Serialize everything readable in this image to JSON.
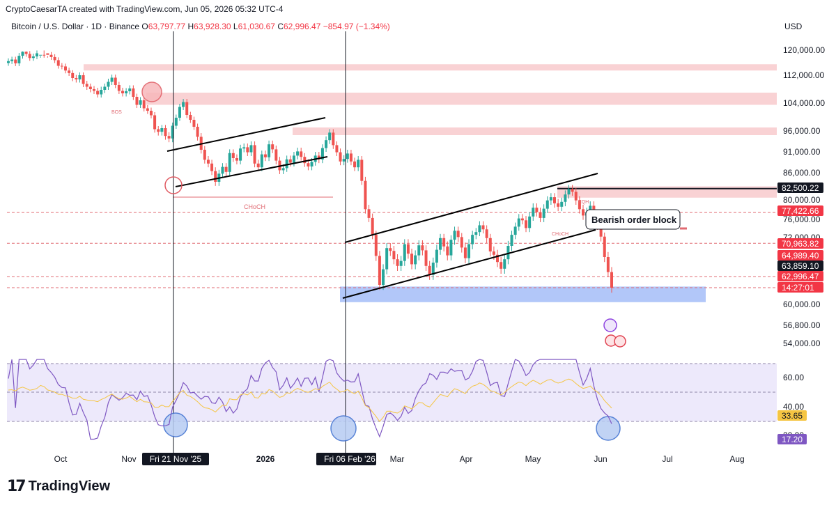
{
  "header": {
    "credit": "CryptoCaesarTA created with TradingView.com, Jun 05, 2026 05:32 UTC-4",
    "symbol": "Bitcoin / U.S. Dollar · 1D · Binance",
    "open_label": "O",
    "open": "63,797.77",
    "high_label": "H",
    "high": "63,928.30",
    "low_label": "L",
    "low": "61,030.67",
    "close_label": "C",
    "close": "62,996.47",
    "change": "−854.97 (−1.34%)",
    "currency": "USD"
  },
  "logo": {
    "mark": "17",
    "text": "TradingView"
  },
  "chart_data": {
    "type": "candlestick",
    "price_axis": {
      "ticks": [
        {
          "label": "120,000.00",
          "value": 120000
        },
        {
          "label": "112,000.00",
          "value": 112000
        },
        {
          "label": "104,000.00",
          "value": 104000
        },
        {
          "label": "96,000.00",
          "value": 96000
        },
        {
          "label": "91,000.00",
          "value": 91000
        },
        {
          "label": "86,000.00",
          "value": 86000
        },
        {
          "label": "80,000.00",
          "value": 80000
        },
        {
          "label": "76,000.00",
          "value": 76000
        },
        {
          "label": "72,000.00",
          "value": 72000
        },
        {
          "label": "60,000.00",
          "value": 60000
        },
        {
          "label": "56,800.00",
          "value": 56800
        },
        {
          "label": "54,000.00",
          "value": 54000
        }
      ],
      "price_tags": [
        {
          "label": "82,500.22",
          "value": 82500,
          "color": "#131722"
        },
        {
          "label": "77,422.66",
          "value": 77422,
          "color": "#f23645"
        },
        {
          "label": "70,963.82",
          "value": 70963,
          "color": "#f23645"
        },
        {
          "label": "64,989.40",
          "value": 64989,
          "color": "#f23645"
        },
        {
          "label": "63,859.10",
          "value": 63859,
          "color": "#131722"
        },
        {
          "label": "62,996.47",
          "value": 62996,
          "color": "#f23645"
        },
        {
          "label": "14:27:01",
          "value": 61600,
          "color": "#f23645"
        }
      ]
    },
    "time_axis": {
      "labels": [
        "Oct",
        "Nov",
        "2026",
        "Mar",
        "Apr",
        "May",
        "Jun",
        "Jul",
        "Aug"
      ],
      "highlighted": [
        "Fri 21 Nov '25",
        "Fri 06 Feb '26"
      ]
    },
    "candles_close": [
      116500,
      117000,
      115800,
      118200,
      119500,
      118800,
      117500,
      118000,
      119000,
      121500,
      121000,
      118500,
      117800,
      116800,
      115000,
      114800,
      113500,
      112700,
      111200,
      110800,
      112000,
      109500,
      108700,
      108000,
      107500,
      106500,
      107800,
      108700,
      110100,
      111300,
      109200,
      107500,
      106800,
      107400,
      108200,
      105800,
      103500,
      104800,
      102500,
      101800,
      100500,
      96500,
      95800,
      96800,
      94800,
      94200,
      97500,
      99800,
      102900,
      104300,
      100600,
      99200,
      97200,
      94600,
      91500,
      89100,
      88200,
      86400,
      84000,
      85800,
      87400,
      86200,
      90700,
      89500,
      88900,
      91800,
      92100,
      90900,
      92600,
      88200,
      87300,
      90400,
      89700,
      92800,
      91600,
      88900,
      86600,
      87100,
      89200,
      88400,
      90100,
      91100,
      89800,
      88300,
      87500,
      88600,
      90100,
      89200,
      91900,
      93800,
      95600,
      92600,
      90900,
      88700,
      89300,
      90600,
      88700,
      87300,
      89100,
      84200,
      78100,
      76300,
      72600,
      68700,
      63500,
      66300,
      70100,
      69600,
      68100,
      66900,
      67800,
      70800,
      69100,
      67200,
      68800,
      70600,
      69700,
      66900,
      65300,
      67500,
      69800,
      71900,
      70400,
      68800,
      71600,
      73500,
      72100,
      70200,
      68300,
      70800,
      72600,
      73200,
      74700,
      73800,
      71900,
      69500,
      68900,
      67600,
      66400,
      68100,
      70500,
      72600,
      74400,
      76200,
      75800,
      74100,
      76600,
      78400,
      77500,
      76300,
      78200,
      79900,
      80600,
      79300,
      78600,
      79600,
      81200,
      82400,
      81800,
      79900,
      78100,
      76800,
      77500,
      78800,
      76300,
      74600,
      72200,
      68500,
      65800,
      62996
    ],
    "rsi": {
      "labels": [
        "60.00",
        "40.00",
        "20.00"
      ],
      "current_1": "33.65",
      "current_2": "17.20"
    },
    "annotations": {
      "order_block": "Bearish order block",
      "choch": "CHoCH",
      "choch_small": "CHoCH",
      "bos": "BOS",
      "eqh": "EQH"
    }
  }
}
